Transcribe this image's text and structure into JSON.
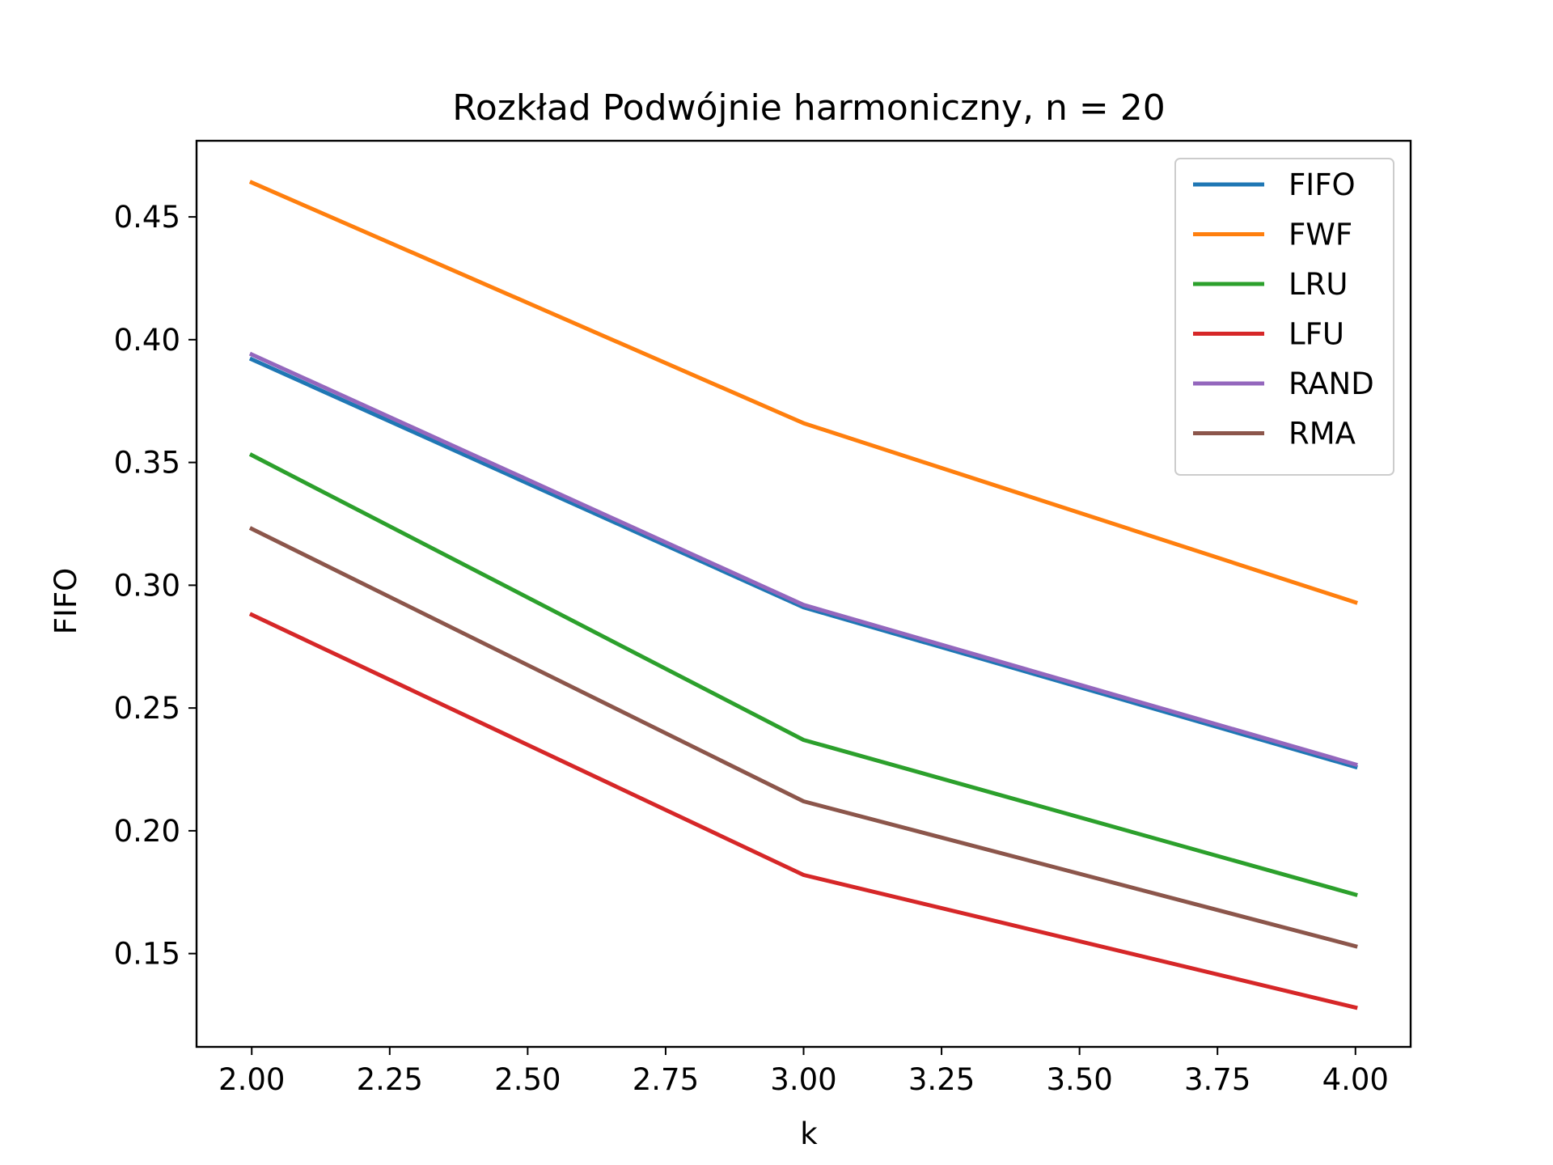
{
  "chart_data": {
    "type": "line",
    "title": "Rozkład Podwójnie harmoniczny, n = 20",
    "xlabel": "k",
    "ylabel": "FIFO",
    "x": [
      2,
      3,
      4
    ],
    "xlim": [
      1.9,
      4.1
    ],
    "ylim": [
      0.112,
      0.481
    ],
    "xticks": [
      2.0,
      2.25,
      2.5,
      2.75,
      3.0,
      3.25,
      3.5,
      3.75,
      4.0
    ],
    "xtick_labels": [
      "2.00",
      "2.25",
      "2.50",
      "2.75",
      "3.00",
      "3.25",
      "3.50",
      "3.75",
      "4.00"
    ],
    "yticks": [
      0.15,
      0.2,
      0.25,
      0.3,
      0.35,
      0.4,
      0.45
    ],
    "ytick_labels": [
      "0.15",
      "0.20",
      "0.25",
      "0.30",
      "0.35",
      "0.40",
      "0.45"
    ],
    "grid": false,
    "legend_position": "top-right",
    "series": [
      {
        "name": "FIFO",
        "color": "#1f77b4",
        "values": [
          0.392,
          0.291,
          0.226
        ]
      },
      {
        "name": "FWF",
        "color": "#ff7f0e",
        "values": [
          0.464,
          0.366,
          0.293
        ]
      },
      {
        "name": "LRU",
        "color": "#2ca02c",
        "values": [
          0.353,
          0.237,
          0.174
        ]
      },
      {
        "name": "LFU",
        "color": "#d62728",
        "values": [
          0.288,
          0.182,
          0.128
        ]
      },
      {
        "name": "RAND",
        "color": "#9467bd",
        "values": [
          0.394,
          0.292,
          0.227
        ]
      },
      {
        "name": "RMA",
        "color": "#8c564b",
        "values": [
          0.323,
          0.212,
          0.153
        ]
      }
    ]
  }
}
